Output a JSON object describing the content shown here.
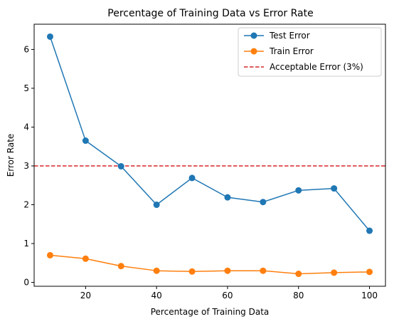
{
  "chart_data": {
    "type": "line",
    "title": "Percentage of Training Data vs Error Rate",
    "xlabel": "Percentage of Training Data",
    "ylabel": "Error Rate",
    "xlim": [
      5.5,
      104.5
    ],
    "ylim": [
      -0.1,
      6.65
    ],
    "xticks": [
      20,
      40,
      60,
      80,
      100
    ],
    "yticks": [
      0,
      1,
      2,
      3,
      4,
      5,
      6
    ],
    "grid": false,
    "legend_position": "top-right",
    "x": [
      10,
      20,
      30,
      40,
      50,
      60,
      70,
      80,
      90,
      100
    ],
    "series": [
      {
        "name": "Test Error",
        "color": "#1f77b4",
        "marker": "circle",
        "values": [
          6.33,
          3.65,
          2.99,
          2.0,
          2.69,
          2.19,
          2.07,
          2.37,
          2.42,
          1.33
        ]
      },
      {
        "name": "Train Error",
        "color": "#ff7f0e",
        "marker": "circle",
        "values": [
          0.7,
          0.61,
          0.42,
          0.3,
          0.28,
          0.3,
          0.3,
          0.22,
          0.25,
          0.27
        ]
      }
    ],
    "reference_lines": [
      {
        "name": "Acceptable Error (3%)",
        "axis": "y",
        "value": 3,
        "color": "#d62728",
        "style": "dashed"
      }
    ]
  }
}
